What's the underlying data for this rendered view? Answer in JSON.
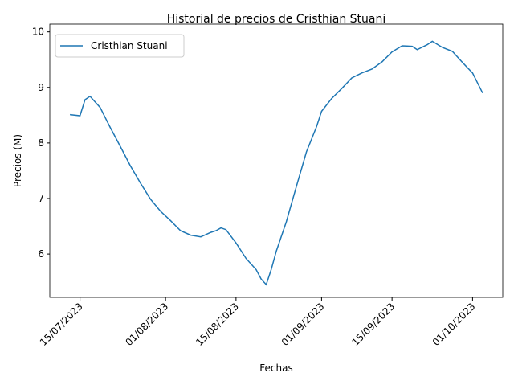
{
  "chart_data": {
    "type": "line",
    "title": "Historial de precios de Cristhian Stuani",
    "x_label": "Fechas",
    "y_label": "Precios (M)",
    "x": [
      "2023-07-13",
      "2023-07-15",
      "2023-07-16",
      "2023-07-17",
      "2023-07-19",
      "2023-07-20",
      "2023-07-21",
      "2023-07-23",
      "2023-07-25",
      "2023-07-27",
      "2023-07-29",
      "2023-07-31",
      "2023-08-02",
      "2023-08-04",
      "2023-08-06",
      "2023-08-08",
      "2023-08-10",
      "2023-08-11",
      "2023-08-12",
      "2023-08-13",
      "2023-08-15",
      "2023-08-17",
      "2023-08-19",
      "2023-08-20",
      "2023-08-21",
      "2023-08-22",
      "2023-08-23",
      "2023-08-25",
      "2023-08-27",
      "2023-08-29",
      "2023-08-31",
      "2023-09-01",
      "2023-09-03",
      "2023-09-05",
      "2023-09-07",
      "2023-09-09",
      "2023-09-11",
      "2023-09-13",
      "2023-09-15",
      "2023-09-17",
      "2023-09-19",
      "2023-09-20",
      "2023-09-22",
      "2023-09-23",
      "2023-09-25",
      "2023-09-27",
      "2023-09-29",
      "2023-10-01",
      "2023-10-03"
    ],
    "series": [
      {
        "name": "Cristhian Stuani",
        "color": "#1f77b4",
        "values": [
          8.51,
          8.49,
          8.78,
          8.84,
          8.64,
          8.46,
          8.28,
          7.94,
          7.59,
          7.28,
          6.99,
          6.77,
          6.6,
          6.42,
          6.34,
          6.31,
          6.39,
          6.42,
          6.47,
          6.44,
          6.2,
          5.92,
          5.72,
          5.55,
          5.45,
          5.72,
          6.05,
          6.58,
          7.22,
          7.84,
          8.29,
          8.57,
          8.8,
          8.98,
          9.17,
          9.26,
          9.33,
          9.46,
          9.64,
          9.75,
          9.74,
          9.68,
          9.77,
          9.83,
          9.72,
          9.65,
          9.45,
          9.26,
          8.9
        ]
      }
    ],
    "xlim": [
      "2023-07-09",
      "2023-10-07"
    ],
    "xticks": [
      {
        "value": "2023-07-15",
        "label": "15/07/2023"
      },
      {
        "value": "2023-08-01",
        "label": "01/08/2023"
      },
      {
        "value": "2023-08-15",
        "label": "15/08/2023"
      },
      {
        "value": "2023-09-01",
        "label": "01/09/2023"
      },
      {
        "value": "2023-09-15",
        "label": "15/09/2023"
      },
      {
        "value": "2023-10-01",
        "label": "01/10/2023"
      }
    ],
    "ylim": [
      5.22,
      10.14
    ],
    "yticks": [
      6,
      7,
      8,
      9,
      10
    ],
    "legend": "upper left",
    "grid": false
  }
}
